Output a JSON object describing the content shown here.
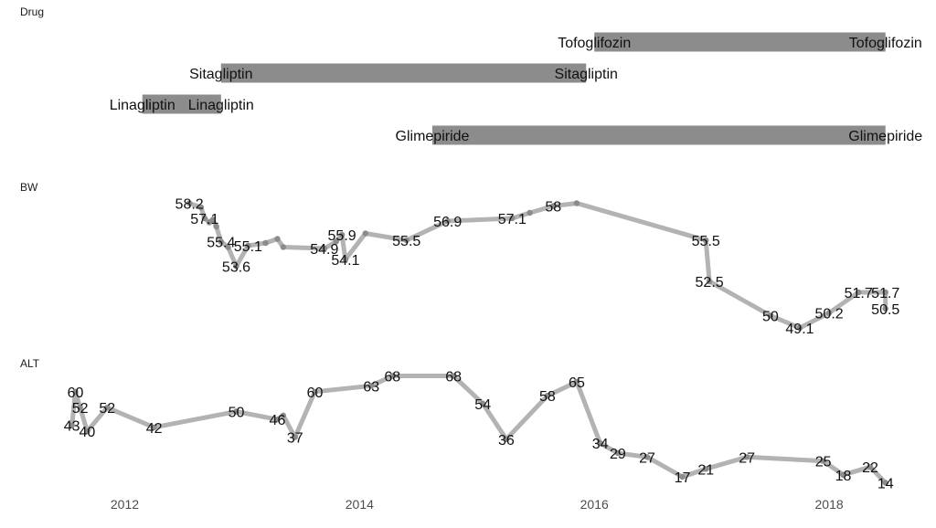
{
  "chart_data": {
    "type": "line",
    "colors": {
      "bar": "#8c8c8c",
      "line": "#b3b3b3",
      "point": "#8c8c8c",
      "text": "#111111"
    },
    "grid": false,
    "xlim": [
      "2011.35",
      "2018.7"
    ],
    "x_ticks": [
      "2012",
      "2014",
      "2016",
      "2018"
    ],
    "panels": [
      {
        "title": "Drug",
        "type": "gantt",
        "bars": [
          {
            "name": "Tofoglifozin",
            "start": 2016.0,
            "end": 2018.48
          },
          {
            "name": "Sitagliptin",
            "start": 2012.82,
            "end": 2015.93
          },
          {
            "name": "Linagliptin",
            "start": 2012.15,
            "end": 2012.82
          },
          {
            "name": "Glimepiride",
            "start": 2014.62,
            "end": 2018.48
          }
        ]
      },
      {
        "title": "BW",
        "type": "line",
        "ylim": [
          48.5,
          58.7
        ],
        "x": [
          2012.55,
          2012.65,
          2012.68,
          2012.72,
          2012.75,
          2012.78,
          2012.82,
          2012.88,
          2012.95,
          2013.05,
          2013.2,
          2013.3,
          2013.35,
          2013.7,
          2013.8,
          2013.85,
          2013.88,
          2014.05,
          2014.4,
          2014.75,
          2015.3,
          2015.45,
          2015.65,
          2015.85,
          2016.95,
          2016.98,
          2017.5,
          2017.75,
          2018.0,
          2018.25,
          2018.48,
          2018.48
        ],
        "values": [
          58.2,
          57.9,
          57.1,
          56.8,
          57.0,
          56.5,
          55.4,
          55.0,
          53.6,
          55.1,
          55.3,
          55.6,
          55.0,
          54.9,
          55.4,
          55.9,
          54.1,
          56.0,
          55.5,
          56.9,
          57.1,
          57.5,
          58.0,
          58.2,
          55.5,
          52.5,
          50,
          49.1,
          50.2,
          51.7,
          51.7,
          50.5
        ],
        "labels": [
          "58.2",
          "",
          "57.1",
          "",
          "",
          "",
          "55.4",
          "",
          "53.6",
          "55.1",
          "",
          "",
          "",
          "54.9",
          "",
          "55.9",
          "54.1",
          "",
          "55.5",
          "56.9",
          "57.1",
          "",
          "58",
          "",
          "55.5",
          "52.5",
          "50",
          "49.1",
          "50.2",
          "51.7",
          "51.7",
          "50.5"
        ]
      },
      {
        "title": "ALT",
        "type": "line",
        "ylim": [
          11,
          71
        ],
        "x": [
          2011.55,
          2011.58,
          2011.62,
          2011.68,
          2011.85,
          2012.25,
          2012.95,
          2013.3,
          2013.35,
          2013.45,
          2013.62,
          2014.1,
          2014.28,
          2014.8,
          2015.05,
          2015.25,
          2015.6,
          2015.85,
          2016.05,
          2016.2,
          2016.45,
          2016.75,
          2016.95,
          2017.3,
          2017.95,
          2018.12,
          2018.35,
          2018.48
        ],
        "values": [
          43,
          60,
          52,
          40,
          52,
          42,
          50,
          46,
          48,
          37,
          60,
          63,
          68,
          68,
          54,
          36,
          58,
          65,
          34,
          29,
          27,
          17,
          21,
          27,
          25,
          18,
          22,
          14
        ],
        "labels": [
          "43",
          "60",
          "52",
          "40",
          "52",
          "42",
          "50",
          "46",
          "",
          "37",
          "60",
          "63",
          "68",
          "68",
          "54",
          "36",
          "58",
          "65",
          "34",
          "29",
          "27",
          "17",
          "21",
          "27",
          "25",
          "18",
          "22",
          "14"
        ]
      }
    ]
  }
}
